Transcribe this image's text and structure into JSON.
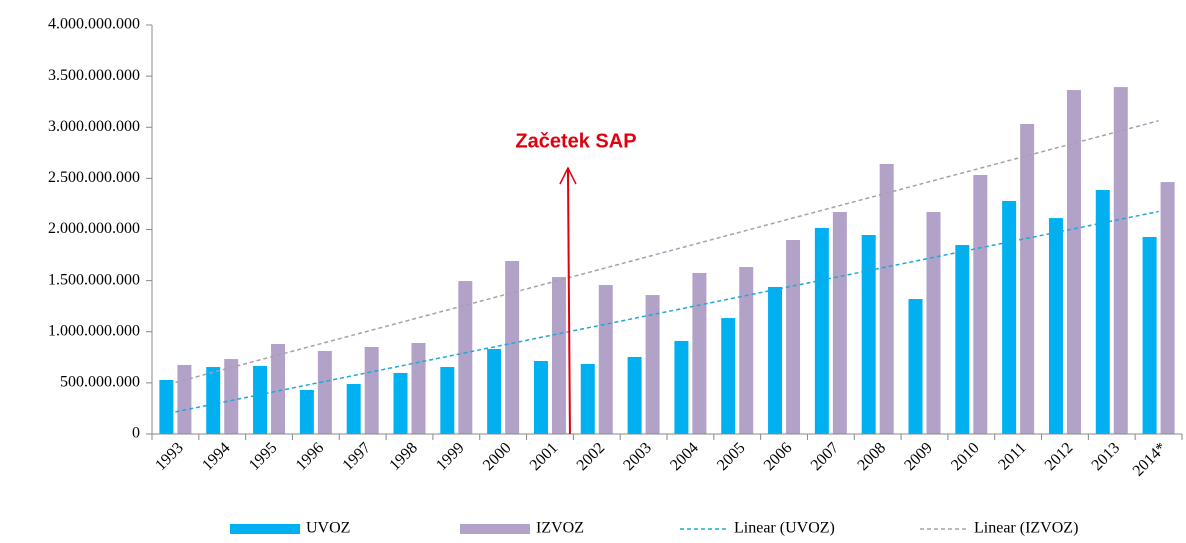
{
  "chart_data": {
    "type": "bar",
    "categories": [
      "1993",
      "1994",
      "1995",
      "1996",
      "1997",
      "1998",
      "1999",
      "2000",
      "2001",
      "2002",
      "2003",
      "2004",
      "2005",
      "2006",
      "2007",
      "2008",
      "2009",
      "2010",
      "2011",
      "2012",
      "2013",
      "2014*"
    ],
    "series": [
      {
        "name": "UVOZ",
        "color": "#00b0f0",
        "values": [
          528000000,
          655000000,
          665000000,
          430000000,
          489000000,
          597000000,
          655000000,
          831000000,
          714000000,
          685000000,
          753000000,
          910000000,
          1134000000,
          1438000000,
          2015000000,
          1946000000,
          1320000000,
          1848000000,
          2279000000,
          2112000000,
          2386000000,
          1927000000
        ],
        "trendline": {
          "name": "Linear (UVOZ)",
          "color": "#1fa9d6"
        }
      },
      {
        "name": "IZVOZ",
        "color": "#b3a2c7",
        "values": [
          675000000,
          733000000,
          880000000,
          812000000,
          851000000,
          890000000,
          1496000000,
          1692000000,
          1535000000,
          1457000000,
          1359000000,
          1575000000,
          1633000000,
          1897000000,
          2171000000,
          2641000000,
          2171000000,
          2533000000,
          3032000000,
          3364000000,
          3393000000,
          2464000000
        ],
        "trendline": {
          "name": "Linear (IZVOZ)",
          "color": "#a6a0b0"
        }
      }
    ],
    "ylim": [
      0,
      4000000000
    ],
    "yticks": [
      0,
      {
        "value": 500000000,
        "label": "500.000.000"
      },
      {
        "value": 1000000000,
        "label": "1.000.000.000"
      },
      {
        "value": 1500000000,
        "label": "1.500.000.000"
      },
      {
        "value": 2000000000,
        "label": "2.000.000.000"
      },
      {
        "value": 2500000000,
        "label": "2.500.000.000"
      },
      {
        "value": 3000000000,
        "label": "3.000.000.000"
      },
      {
        "value": 3500000000,
        "label": "3.500.000.000"
      },
      {
        "value": 4000000000,
        "label": "4.000.000.000"
      }
    ],
    "grid": false,
    "legend": "bottom",
    "annotation": {
      "text": "Začetek SAP",
      "category": "2001",
      "color": "#e0000f"
    }
  }
}
